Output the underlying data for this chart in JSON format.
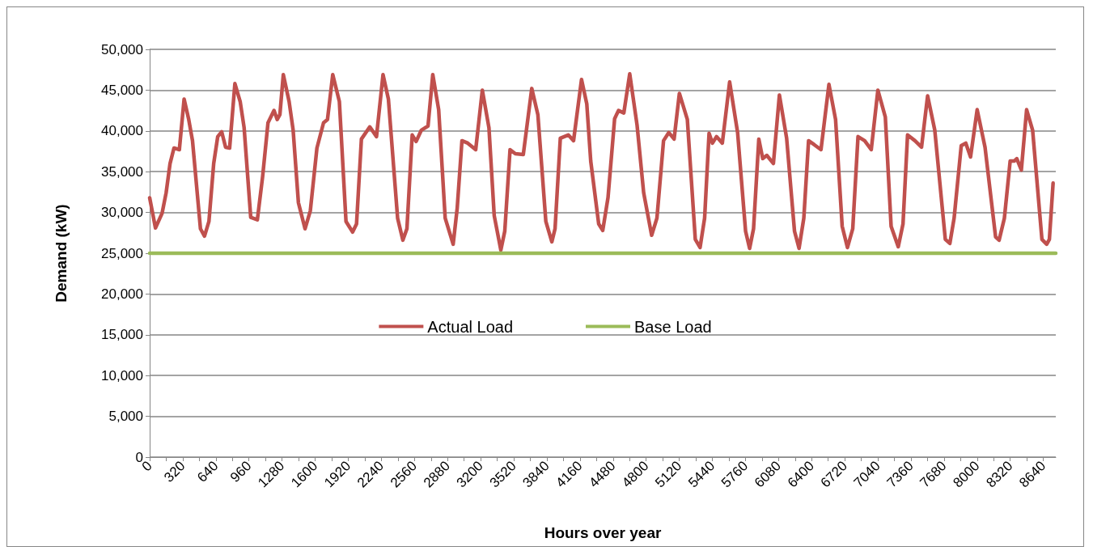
{
  "chart_data": {
    "type": "line",
    "xlabel": "Hours over year",
    "ylabel": "Demand (kW)",
    "xlim": [
      0,
      8760
    ],
    "xticks": [
      0,
      {
        "value": 160,
        "label": null
      },
      320,
      {
        "value": 480,
        "label": null
      },
      640,
      {
        "value": 800,
        "label": null
      },
      960,
      {
        "value": 1120,
        "label": null
      },
      1280,
      {
        "value": 1440,
        "label": null
      },
      1600,
      {
        "value": 1760,
        "label": null
      },
      1920,
      {
        "value": 2080,
        "label": null
      },
      2240,
      {
        "value": 2400,
        "label": null
      },
      2560,
      {
        "value": 2720,
        "label": null
      },
      2880,
      {
        "value": 3040,
        "label": null
      },
      3200,
      {
        "value": 3360,
        "label": null
      },
      3520,
      {
        "value": 3680,
        "label": null
      },
      3840,
      {
        "value": 4000,
        "label": null
      },
      4160,
      {
        "value": 4320,
        "label": null
      },
      4480,
      {
        "value": 4640,
        "label": null
      },
      4800,
      {
        "value": 4960,
        "label": null
      },
      5120,
      {
        "value": 5280,
        "label": null
      },
      5440,
      {
        "value": 5600,
        "label": null
      },
      5760,
      {
        "value": 5920,
        "label": null
      },
      6080,
      {
        "value": 6240,
        "label": null
      },
      6400,
      {
        "value": 6560,
        "label": null
      },
      6720,
      {
        "value": 6880,
        "label": null
      },
      7040,
      {
        "value": 7200,
        "label": null
      },
      7360,
      {
        "value": 7520,
        "label": null
      },
      7680,
      {
        "value": 7840,
        "label": null
      },
      8000,
      {
        "value": 8160,
        "label": null
      },
      8320,
      {
        "value": 8480,
        "label": null
      },
      8640
    ],
    "ylim": [
      0,
      50000
    ],
    "yticks": [
      0,
      {
        "value": 5000,
        "label": "5,000"
      },
      {
        "value": 10000,
        "label": "10,000"
      },
      {
        "value": 15000,
        "label": "15,000"
      },
      {
        "value": 20000,
        "label": "20,000"
      },
      {
        "value": 25000,
        "label": "25,000"
      },
      {
        "value": 30000,
        "label": "30,000"
      },
      {
        "value": 35000,
        "label": "35,000"
      },
      {
        "value": 40000,
        "label": "40,000"
      },
      {
        "value": 45000,
        "label": "45,000"
      },
      {
        "value": 50000,
        "label": "50,000"
      }
    ],
    "grid": "y",
    "legend": "center",
    "marker": "none",
    "line_style": "solid",
    "series": [
      {
        "name": "Actual Load",
        "color": "#c0504d",
        "x": [
          0,
          56,
          120,
          159,
          197,
          235,
          287,
          333,
          376,
          414,
          491,
          530,
          573,
          619,
          658,
          696,
          734,
          773,
          824,
          875,
          913,
          977,
          1041,
          1092,
          1144,
          1202,
          1233,
          1259,
          1292,
          1348,
          1387,
          1438,
          1502,
          1553,
          1617,
          1681,
          1719,
          1770,
          1834,
          1898,
          1962,
          2000,
          2047,
          2128,
          2193,
          2256,
          2308,
          2397,
          2448,
          2487,
          2538,
          2576,
          2627,
          2691,
          2737,
          2794,
          2857,
          2934,
          2973,
          3019,
          3075,
          3152,
          3216,
          3280,
          3331,
          3395,
          3433,
          3484,
          3535,
          3612,
          3694,
          3753,
          3830,
          3888,
          3919,
          3970,
          4047,
          4098,
          4175,
          4226,
          4264,
          4341,
          4380,
          4431,
          4495,
          4533,
          4584,
          4641,
          4712,
          4776,
          4853,
          4904,
          4968,
          5019,
          5070,
          5121,
          5198,
          5275,
          5321,
          5365,
          5408,
          5441,
          5480,
          5536,
          5607,
          5684,
          5761,
          5800,
          5838,
          5889,
          5927,
          5966,
          6030,
          6088,
          6158,
          6234,
          6278,
          6324,
          6370,
          6426,
          6490,
          6567,
          6631,
          6695,
          6746,
          6797,
          6848,
          6912,
          6976,
          7040,
          7112,
          7168,
          7237,
          7283,
          7327,
          7398,
          7462,
          7521,
          7590,
          7692,
          7736,
          7777,
          7846,
          7890,
          7936,
          8000,
          8076,
          8178,
          8212,
          8263,
          8319,
          8358,
          8383,
          8427,
          8478,
          8536,
          8626,
          8672,
          8698,
          8734
        ],
        "values": [
          31800,
          28100,
          29900,
          32400,
          36000,
          37900,
          37700,
          43900,
          41500,
          38800,
          28000,
          27100,
          28900,
          36000,
          39300,
          39900,
          38000,
          37900,
          45800,
          43600,
          40400,
          29400,
          29100,
          34400,
          41000,
          42500,
          41400,
          42000,
          46900,
          43600,
          40100,
          31200,
          28000,
          30200,
          37900,
          41000,
          41400,
          46900,
          43600,
          28900,
          27600,
          28600,
          39000,
          40500,
          39300,
          46900,
          43900,
          29300,
          26600,
          28000,
          39500,
          38700,
          40100,
          40600,
          46900,
          42600,
          29300,
          26100,
          30500,
          38800,
          38500,
          37700,
          45000,
          40400,
          29600,
          25400,
          27700,
          37700,
          37200,
          37100,
          45200,
          42000,
          28900,
          26400,
          28000,
          39100,
          39500,
          38800,
          46300,
          43300,
          36300,
          28600,
          27800,
          31800,
          41500,
          42500,
          42200,
          47000,
          40700,
          32400,
          27200,
          29300,
          38800,
          39800,
          39000,
          44600,
          41400,
          26700,
          25700,
          29300,
          39700,
          38500,
          39300,
          38500,
          46000,
          39800,
          27700,
          25600,
          28000,
          39000,
          36600,
          37000,
          36000,
          44400,
          39100,
          27700,
          25600,
          29300,
          38800,
          38300,
          37700,
          45700,
          41400,
          28300,
          25700,
          28000,
          39300,
          38800,
          37700,
          45000,
          41700,
          28300,
          25800,
          28600,
          39500,
          38800,
          38000,
          44300,
          40100,
          26700,
          26200,
          29300,
          38200,
          38500,
          36800,
          42600,
          38000,
          27000,
          26600,
          29300,
          36300,
          36300,
          36600,
          35200,
          42600,
          40100,
          26700,
          26100,
          26700,
          33600
        ]
      },
      {
        "name": "Base Load",
        "color": "#9bbb59",
        "x": [
          0,
          8760
        ],
        "values": [
          25000,
          25000
        ]
      }
    ]
  }
}
